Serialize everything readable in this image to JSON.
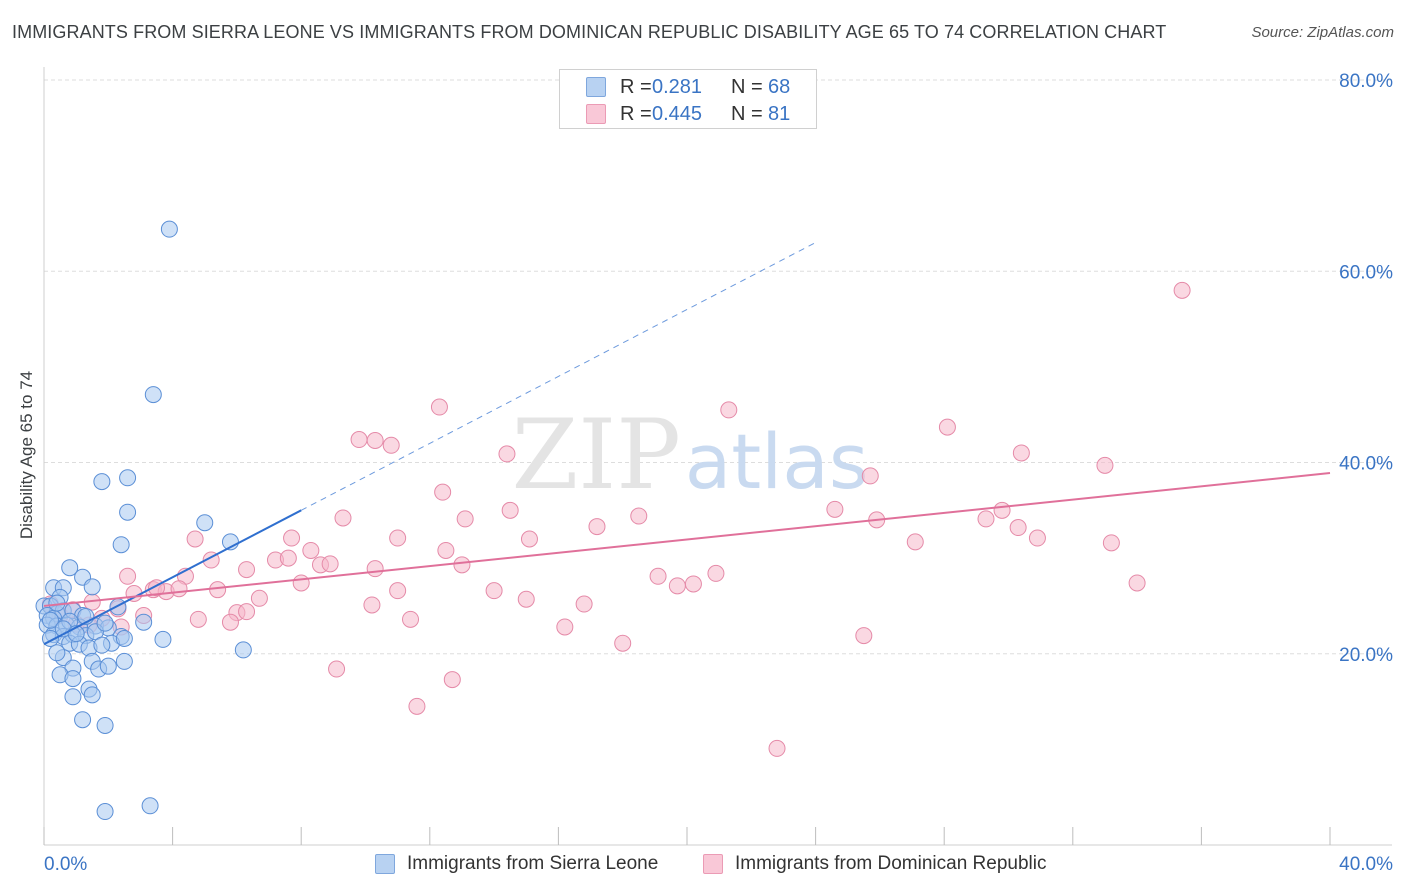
{
  "title": "IMMIGRANTS FROM SIERRA LEONE VS IMMIGRANTS FROM DOMINICAN REPUBLIC DISABILITY AGE 65 TO 74 CORRELATION CHART",
  "source": "Source: ZipAtlas.com",
  "watermark": {
    "zip": "ZIP",
    "atlas": "atlas"
  },
  "colors": {
    "blue_fill": "#a8c8f0",
    "blue_stroke": "#5b8fd6",
    "blue_line": "#2f6fcf",
    "pink_fill": "#f5b8cb",
    "pink_stroke": "#e58aa8",
    "pink_line": "#e0709a",
    "grid": "#dddddd",
    "axis_text": "#3a74c4"
  },
  "legend": {
    "rows": [
      {
        "r_label": "R =",
        "r_value": "0.281",
        "n_label": "N =",
        "n_value": "68"
      },
      {
        "r_label": "R =",
        "r_value": "0.445",
        "n_label": "N =",
        "n_value": "81"
      }
    ]
  },
  "bottom_legend": [
    {
      "label": "Immigrants from Sierra Leone"
    },
    {
      "label": "Immigrants from Dominican Republic"
    }
  ],
  "chart_data": {
    "type": "scatter",
    "title": "IMMIGRANTS FROM SIERRA LEONE VS IMMIGRANTS FROM DOMINICAN REPUBLIC DISABILITY AGE 65 TO 74 CORRELATION CHART",
    "xlabel": "",
    "ylabel": "Disability Age 65 to 74",
    "xlim": [
      0,
      40
    ],
    "ylim": [
      0,
      80
    ],
    "x_tick_labels": [
      {
        "value": 0,
        "label": "0.0%"
      },
      {
        "value": 40,
        "label": "40.0%"
      }
    ],
    "y_tick_labels": [
      {
        "value": 20,
        "label": "20.0%"
      },
      {
        "value": 40,
        "label": "40.0%"
      },
      {
        "value": 60,
        "label": "60.0%"
      },
      {
        "value": 80,
        "label": "80.0%"
      }
    ],
    "y_gridlines": [
      20,
      40,
      60,
      80
    ],
    "x_minor_ticks": [
      0,
      4,
      8,
      12,
      16,
      20,
      24,
      28,
      32,
      36,
      40
    ],
    "series": [
      {
        "name": "Immigrants from Sierra Leone",
        "color": "blue",
        "R": 0.281,
        "N": 68,
        "trend_solid": {
          "x": [
            0.0,
            8.0
          ],
          "y": [
            21.0,
            35.0
          ]
        },
        "trend_dashed": {
          "x": [
            8.0,
            24.0
          ],
          "y": [
            35.0,
            63.0
          ]
        },
        "points": [
          [
            3.9,
            64.4
          ],
          [
            3.4,
            47.1
          ],
          [
            2.6,
            38.4
          ],
          [
            1.8,
            38.0
          ],
          [
            2.6,
            34.8
          ],
          [
            5.0,
            33.7
          ],
          [
            2.4,
            31.4
          ],
          [
            5.8,
            31.7
          ],
          [
            0.8,
            29.0
          ],
          [
            1.2,
            28.0
          ],
          [
            0.3,
            26.9
          ],
          [
            0.6,
            26.9
          ],
          [
            1.5,
            27.0
          ],
          [
            0.5,
            25.9
          ],
          [
            0.0,
            25.0
          ],
          [
            0.2,
            25.0
          ],
          [
            0.4,
            24.2
          ],
          [
            0.6,
            24.5
          ],
          [
            0.9,
            24.5
          ],
          [
            1.2,
            24.0
          ],
          [
            2.3,
            24.9
          ],
          [
            0.1,
            24.0
          ],
          [
            0.3,
            23.7
          ],
          [
            0.1,
            23.0
          ],
          [
            0.4,
            22.9
          ],
          [
            0.7,
            23.0
          ],
          [
            1.1,
            22.8
          ],
          [
            1.6,
            22.9
          ],
          [
            2.0,
            22.7
          ],
          [
            3.1,
            23.3
          ],
          [
            0.3,
            22.0
          ],
          [
            0.6,
            21.8
          ],
          [
            0.9,
            22.0
          ],
          [
            1.3,
            21.9
          ],
          [
            1.6,
            22.3
          ],
          [
            2.4,
            21.8
          ],
          [
            0.8,
            21.1
          ],
          [
            1.1,
            21.0
          ],
          [
            1.4,
            20.6
          ],
          [
            2.1,
            21.1
          ],
          [
            3.7,
            21.5
          ],
          [
            6.2,
            20.4
          ],
          [
            0.6,
            19.6
          ],
          [
            1.5,
            19.2
          ],
          [
            2.5,
            19.2
          ],
          [
            0.9,
            18.5
          ],
          [
            1.7,
            18.4
          ],
          [
            0.5,
            17.8
          ],
          [
            0.9,
            17.4
          ],
          [
            1.4,
            16.3
          ],
          [
            0.9,
            15.5
          ],
          [
            1.5,
            15.7
          ],
          [
            1.2,
            13.1
          ],
          [
            1.9,
            12.5
          ],
          [
            1.9,
            3.5
          ],
          [
            3.3,
            4.1
          ],
          [
            0.2,
            23.5
          ],
          [
            0.8,
            23.4
          ],
          [
            1.9,
            23.2
          ],
          [
            2.5,
            21.6
          ],
          [
            0.4,
            25.3
          ],
          [
            0.2,
            21.6
          ],
          [
            1.3,
            23.9
          ],
          [
            0.6,
            22.6
          ],
          [
            1.0,
            22.1
          ],
          [
            1.8,
            20.9
          ],
          [
            0.4,
            20.1
          ],
          [
            2.0,
            18.7
          ]
        ]
      },
      {
        "name": "Immigrants from Dominican Republic",
        "color": "pink",
        "R": 0.445,
        "N": 81,
        "trend_solid": {
          "x": [
            0.0,
            40.0
          ],
          "y": [
            25.0,
            38.9
          ]
        },
        "points": [
          [
            35.4,
            58.0
          ],
          [
            12.3,
            45.8
          ],
          [
            21.3,
            45.5
          ],
          [
            28.1,
            43.7
          ],
          [
            9.8,
            42.4
          ],
          [
            10.3,
            42.3
          ],
          [
            10.8,
            41.8
          ],
          [
            14.4,
            40.9
          ],
          [
            30.4,
            41.0
          ],
          [
            33.0,
            39.7
          ],
          [
            25.7,
            38.6
          ],
          [
            12.4,
            36.9
          ],
          [
            14.5,
            35.0
          ],
          [
            24.6,
            35.1
          ],
          [
            9.3,
            34.2
          ],
          [
            13.1,
            34.1
          ],
          [
            17.2,
            33.3
          ],
          [
            18.5,
            34.4
          ],
          [
            25.9,
            34.0
          ],
          [
            29.3,
            34.1
          ],
          [
            29.8,
            35.0
          ],
          [
            30.3,
            33.2
          ],
          [
            4.7,
            32.0
          ],
          [
            7.7,
            32.1
          ],
          [
            11.0,
            32.1
          ],
          [
            15.1,
            32.0
          ],
          [
            27.1,
            31.7
          ],
          [
            30.9,
            32.1
          ],
          [
            33.2,
            31.6
          ],
          [
            8.3,
            30.8
          ],
          [
            12.5,
            30.8
          ],
          [
            5.2,
            29.8
          ],
          [
            7.2,
            29.8
          ],
          [
            7.6,
            30.0
          ],
          [
            8.6,
            29.3
          ],
          [
            8.9,
            29.4
          ],
          [
            13.0,
            29.3
          ],
          [
            6.3,
            28.8
          ],
          [
            10.3,
            28.9
          ],
          [
            2.6,
            28.1
          ],
          [
            4.4,
            28.1
          ],
          [
            19.1,
            28.1
          ],
          [
            20.9,
            28.4
          ],
          [
            8.0,
            27.4
          ],
          [
            19.7,
            27.1
          ],
          [
            20.2,
            27.3
          ],
          [
            34.0,
            27.4
          ],
          [
            3.4,
            26.7
          ],
          [
            5.4,
            26.7
          ],
          [
            6.7,
            25.8
          ],
          [
            11.0,
            26.6
          ],
          [
            14.0,
            26.6
          ],
          [
            2.8,
            26.3
          ],
          [
            3.8,
            26.5
          ],
          [
            4.2,
            26.8
          ],
          [
            15.0,
            25.7
          ],
          [
            16.8,
            25.2
          ],
          [
            1.5,
            25.4
          ],
          [
            2.3,
            24.7
          ],
          [
            3.1,
            24.0
          ],
          [
            6.0,
            24.3
          ],
          [
            6.3,
            24.4
          ],
          [
            10.2,
            25.1
          ],
          [
            4.8,
            23.6
          ],
          [
            5.8,
            23.3
          ],
          [
            11.4,
            23.6
          ],
          [
            2.4,
            22.8
          ],
          [
            16.2,
            22.8
          ],
          [
            18.0,
            21.1
          ],
          [
            25.5,
            21.9
          ],
          [
            1.0,
            23.1
          ],
          [
            0.5,
            24.0
          ],
          [
            0.2,
            25.2
          ],
          [
            1.8,
            23.7
          ],
          [
            0.9,
            24.6
          ],
          [
            9.1,
            18.4
          ],
          [
            12.7,
            17.3
          ],
          [
            11.6,
            14.5
          ],
          [
            22.8,
            10.1
          ],
          [
            3.5,
            26.9
          ],
          [
            1.4,
            23.0
          ]
        ]
      }
    ]
  }
}
